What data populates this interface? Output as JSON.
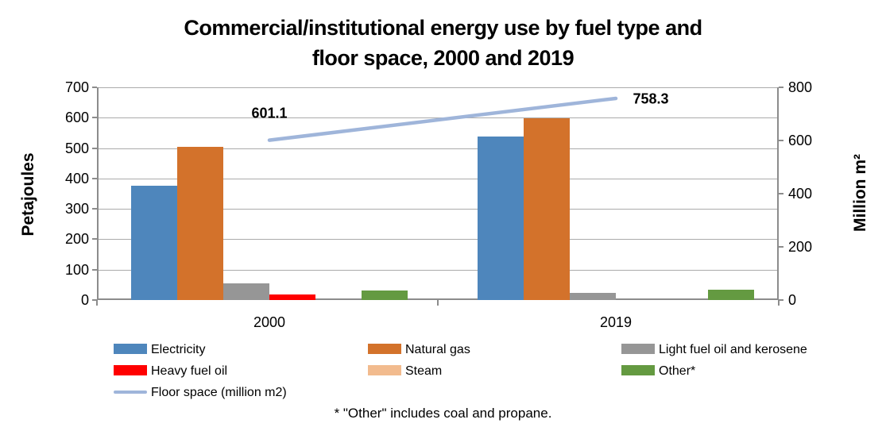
{
  "title": {
    "line1": "Commercial/institutional energy use by fuel type and",
    "line2": "floor space, 2000 and 2019"
  },
  "footnote": "* \"Other\" includes coal and propane.",
  "chart_data": {
    "type": "bar",
    "categories": [
      "2000",
      "2019"
    ],
    "series": [
      {
        "name": "Electricity",
        "color": "#4E86BC",
        "values": [
          375,
          538
        ]
      },
      {
        "name": "Natural gas",
        "color": "#D3722B",
        "values": [
          503,
          597
        ]
      },
      {
        "name": "Light fuel oil and kerosene",
        "color": "#969696",
        "values": [
          55,
          24
        ]
      },
      {
        "name": "Heavy fuel oil",
        "color": "#FF0000",
        "values": [
          17,
          0
        ]
      },
      {
        "name": "Steam",
        "color": "#F2BB8E",
        "values": [
          0,
          0
        ]
      },
      {
        "name": "Other*",
        "color": "#649A41",
        "values": [
          32,
          33
        ]
      }
    ],
    "line_series": {
      "name": "Floor space (million m2)",
      "color": "#9FB5DA",
      "values": [
        601.1,
        758.3
      ],
      "labels": [
        "601.1",
        "758.3"
      ]
    },
    "left_axis": {
      "label": "Petajoules",
      "min": 0,
      "max": 700,
      "step": 100,
      "ticks": [
        0,
        100,
        200,
        300,
        400,
        500,
        600,
        700
      ]
    },
    "right_axis": {
      "label": "Million m²",
      "min": 0,
      "max": 800,
      "step": 200,
      "ticks": [
        0,
        200,
        400,
        600,
        800
      ]
    },
    "grid": true,
    "grid_color": "#ABABAB",
    "axis_color": "#8C8C8C",
    "legend_position": "bottom"
  }
}
